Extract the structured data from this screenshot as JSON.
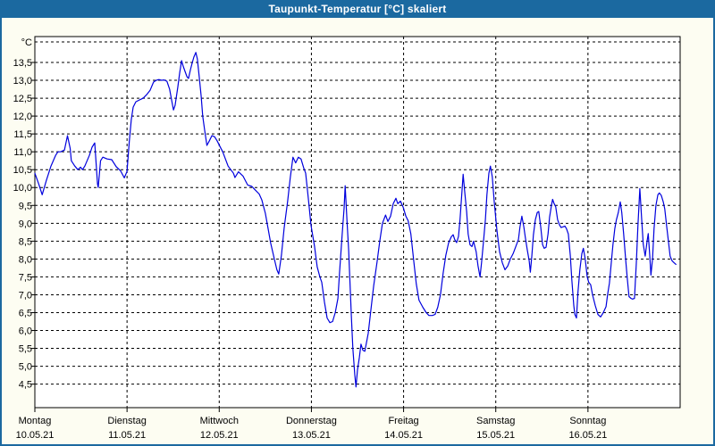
{
  "window": {
    "title": "Taupunkt-Temperatur [°C] skaliert"
  },
  "colors": {
    "titlebar_bg": "#1b69a0",
    "titlebar_text": "#ffffff",
    "frame_border": "#1b69a0",
    "page_bg": "#fdfdf2",
    "plot_bg": "#ffffff",
    "grid": "#000000",
    "axis": "#000000",
    "label_text": "#000000",
    "line": "#0000dd"
  },
  "chart_data": {
    "type": "line",
    "title": "Taupunkt-Temperatur [°C] skaliert",
    "unit_label": "°C",
    "ylabel": "",
    "xlabel": "",
    "ylim": [
      4.5,
      13.5
    ],
    "y_tick_step": 0.5,
    "y_ticks": [
      13.5,
      13.0,
      12.5,
      12.0,
      11.5,
      11.0,
      10.5,
      10.0,
      9.5,
      9.0,
      8.5,
      8.0,
      7.5,
      7.0,
      6.5,
      6.0,
      5.5,
      5.0,
      4.5
    ],
    "grid": "dashed",
    "legend": "none",
    "x_days": [
      {
        "label": "Montag",
        "date": "10.05.21"
      },
      {
        "label": "Dienstag",
        "date": "11.05.21"
      },
      {
        "label": "Mittwoch",
        "date": "12.05.21"
      },
      {
        "label": "Donnerstag",
        "date": "13.05.21"
      },
      {
        "label": "Freitag",
        "date": "14.05.21"
      },
      {
        "label": "Samstag",
        "date": "15.05.21"
      },
      {
        "label": "Sonntag",
        "date": "16.05.21"
      }
    ],
    "x_hours_total": 168,
    "series": [
      {
        "name": "Taupunkt",
        "color": "#0000dd",
        "points": [
          [
            0,
            10.4
          ],
          [
            1,
            10.1
          ],
          [
            1.9,
            9.8
          ],
          [
            3,
            10.2
          ],
          [
            4.2,
            10.6
          ],
          [
            5.4,
            10.9
          ],
          [
            6,
            11
          ],
          [
            6.7,
            11
          ],
          [
            7.7,
            11.05
          ],
          [
            8.5,
            11.45
          ],
          [
            9.2,
            11.1
          ],
          [
            9.5,
            10.75
          ],
          [
            10.4,
            10.6
          ],
          [
            11.2,
            10.5
          ],
          [
            11.9,
            10.57
          ],
          [
            12.4,
            10.5
          ],
          [
            13,
            10.6
          ],
          [
            14.2,
            10.9
          ],
          [
            14.9,
            11.13
          ],
          [
            15.6,
            11.25
          ],
          [
            16.3,
            10.1
          ],
          [
            16.5,
            10
          ],
          [
            17.1,
            10.75
          ],
          [
            17.7,
            10.85
          ],
          [
            18.8,
            10.8
          ],
          [
            20,
            10.78
          ],
          [
            21.2,
            10.58
          ],
          [
            22.3,
            10.47
          ],
          [
            23.3,
            10.27
          ],
          [
            24,
            10.45
          ],
          [
            24.6,
            11.3
          ],
          [
            25.1,
            11.9
          ],
          [
            25.6,
            12.25
          ],
          [
            26.3,
            12.4
          ],
          [
            27.2,
            12.45
          ],
          [
            28.2,
            12.5
          ],
          [
            29.1,
            12.6
          ],
          [
            30,
            12.72
          ],
          [
            30.9,
            12.95
          ],
          [
            31.6,
            13
          ],
          [
            32.3,
            13.02
          ],
          [
            33,
            13
          ],
          [
            33.7,
            13.01
          ],
          [
            34.4,
            12.97
          ],
          [
            35.1,
            12.75
          ],
          [
            35.6,
            12.45
          ],
          [
            36.1,
            12.17
          ],
          [
            36.5,
            12.3
          ],
          [
            37.2,
            12.8
          ],
          [
            37.7,
            13.2
          ],
          [
            38.2,
            13.55
          ],
          [
            38.6,
            13.4
          ],
          [
            39.1,
            13.25
          ],
          [
            39.6,
            13.1
          ],
          [
            40,
            13.05
          ],
          [
            40.5,
            13.3
          ],
          [
            41,
            13.5
          ],
          [
            41.4,
            13.65
          ],
          [
            41.9,
            13.78
          ],
          [
            42.3,
            13.6
          ],
          [
            42.8,
            13.1
          ],
          [
            43.3,
            12.55
          ],
          [
            43.7,
            12
          ],
          [
            44.2,
            11.6
          ],
          [
            44.8,
            11.18
          ],
          [
            45.4,
            11.3
          ],
          [
            46.1,
            11.45
          ],
          [
            46.8,
            11.42
          ],
          [
            47.5,
            11.3
          ],
          [
            48.2,
            11.15
          ],
          [
            48.9,
            11
          ],
          [
            49.6,
            10.8
          ],
          [
            50.3,
            10.6
          ],
          [
            51,
            10.5
          ],
          [
            51.7,
            10.4
          ],
          [
            52.1,
            10.28
          ],
          [
            53,
            10.44
          ],
          [
            54.2,
            10.32
          ],
          [
            55.4,
            10.07
          ],
          [
            56.5,
            10.03
          ],
          [
            57.2,
            9.95
          ],
          [
            58.4,
            9.82
          ],
          [
            59.1,
            9.65
          ],
          [
            60,
            9.28
          ],
          [
            60.7,
            8.86
          ],
          [
            61.4,
            8.44
          ],
          [
            62.3,
            8.03
          ],
          [
            63,
            7.7
          ],
          [
            63.5,
            7.58
          ],
          [
            64.2,
            8.11
          ],
          [
            64.9,
            8.86
          ],
          [
            65.8,
            9.61
          ],
          [
            66.5,
            10.28
          ],
          [
            67.2,
            10.85
          ],
          [
            67.9,
            10.69
          ],
          [
            68.6,
            10.85
          ],
          [
            69.3,
            10.8
          ],
          [
            70,
            10.55
          ],
          [
            70.5,
            10.4
          ],
          [
            71.2,
            9.69
          ],
          [
            71.9,
            8.94
          ],
          [
            72.8,
            8.36
          ],
          [
            73.5,
            7.78
          ],
          [
            74.2,
            7.5
          ],
          [
            74.7,
            7.35
          ],
          [
            75.4,
            6.8
          ],
          [
            76.1,
            6.35
          ],
          [
            76.8,
            6.22
          ],
          [
            77.5,
            6.25
          ],
          [
            78.2,
            6.5
          ],
          [
            78.9,
            6.9
          ],
          [
            79.3,
            7.58
          ],
          [
            80,
            8.67
          ],
          [
            80.5,
            9.42
          ],
          [
            80.8,
            10.05
          ],
          [
            81.3,
            9
          ],
          [
            81.7,
            8.25
          ],
          [
            82.4,
            6.42
          ],
          [
            82.8,
            5.5
          ],
          [
            83.3,
            4.75
          ],
          [
            83.6,
            4.42
          ],
          [
            84,
            4.9
          ],
          [
            84.5,
            5.25
          ],
          [
            84.9,
            5.62
          ],
          [
            85.4,
            5.45
          ],
          [
            85.9,
            5.42
          ],
          [
            86.8,
            5.92
          ],
          [
            87.5,
            6.58
          ],
          [
            88.2,
            7.25
          ],
          [
            89.1,
            7.92
          ],
          [
            89.8,
            8.5
          ],
          [
            90.5,
            9
          ],
          [
            91.3,
            9.23
          ],
          [
            91.9,
            9.05
          ],
          [
            92.6,
            9.2
          ],
          [
            93.3,
            9.55
          ],
          [
            94,
            9.7
          ],
          [
            94.5,
            9.55
          ],
          [
            95.2,
            9.62
          ],
          [
            95.9,
            9.45
          ],
          [
            96.6,
            9.2
          ],
          [
            97.2,
            9.07
          ],
          [
            97.9,
            8.7
          ],
          [
            98.6,
            8
          ],
          [
            99.3,
            7.3
          ],
          [
            100,
            6.85
          ],
          [
            101,
            6.65
          ],
          [
            101.9,
            6.5
          ],
          [
            102.6,
            6.42
          ],
          [
            103.5,
            6.42
          ],
          [
            104.2,
            6.45
          ],
          [
            104.9,
            6.65
          ],
          [
            105.6,
            7
          ],
          [
            106.3,
            7.6
          ],
          [
            107,
            8.1
          ],
          [
            107.7,
            8.45
          ],
          [
            108.4,
            8.62
          ],
          [
            108.9,
            8.68
          ],
          [
            109.3,
            8.55
          ],
          [
            109.8,
            8.46
          ],
          [
            110.3,
            8.63
          ],
          [
            110.7,
            9.1
          ],
          [
            111.2,
            9.9
          ],
          [
            111.5,
            10.37
          ],
          [
            111.9,
            9.9
          ],
          [
            112.4,
            9.33
          ],
          [
            112.8,
            8.7
          ],
          [
            113.3,
            8.4
          ],
          [
            113.8,
            8.35
          ],
          [
            114.2,
            8.5
          ],
          [
            114.9,
            8.2
          ],
          [
            115.4,
            7.8
          ],
          [
            115.9,
            7.5
          ],
          [
            116.3,
            7.9
          ],
          [
            116.8,
            8.5
          ],
          [
            117.3,
            9.1
          ],
          [
            117.7,
            9.8
          ],
          [
            118.2,
            10.4
          ],
          [
            118.6,
            10.6
          ],
          [
            119.1,
            10.3
          ],
          [
            119.6,
            9.6
          ],
          [
            120.3,
            8.8
          ],
          [
            121,
            8.2
          ],
          [
            121.7,
            7.9
          ],
          [
            122.4,
            7.7
          ],
          [
            123.1,
            7.8
          ],
          [
            123.8,
            8
          ],
          [
            124.5,
            8.15
          ],
          [
            125.2,
            8.35
          ],
          [
            125.9,
            8.55
          ],
          [
            126.3,
            8.9
          ],
          [
            126.8,
            9.2
          ],
          [
            127.3,
            8.9
          ],
          [
            127.7,
            8.6
          ],
          [
            128.2,
            8.25
          ],
          [
            128.7,
            7.95
          ],
          [
            129,
            7.63
          ],
          [
            129.4,
            8.1
          ],
          [
            129.8,
            8.67
          ],
          [
            130.3,
            9.1
          ],
          [
            130.8,
            9.3
          ],
          [
            131.2,
            9.33
          ],
          [
            131.7,
            8.9
          ],
          [
            132.2,
            8.4
          ],
          [
            132.6,
            8.3
          ],
          [
            133.1,
            8.33
          ],
          [
            133.6,
            8.7
          ],
          [
            134,
            9.17
          ],
          [
            134.5,
            9.5
          ],
          [
            134.8,
            9.67
          ],
          [
            135.2,
            9.55
          ],
          [
            135.6,
            9.46
          ],
          [
            136.1,
            9.1
          ],
          [
            136.6,
            8.95
          ],
          [
            137,
            8.88
          ],
          [
            137.5,
            8.9
          ],
          [
            138,
            8.92
          ],
          [
            138.4,
            8.85
          ],
          [
            138.9,
            8.7
          ],
          [
            139.4,
            8.1
          ],
          [
            139.8,
            7.42
          ],
          [
            140.3,
            6.7
          ],
          [
            140.6,
            6.45
          ],
          [
            141,
            6.35
          ],
          [
            141.4,
            7.08
          ],
          [
            141.9,
            7.7
          ],
          [
            142.4,
            8.15
          ],
          [
            142.8,
            8.3
          ],
          [
            143.3,
            8
          ],
          [
            143.8,
            7.5
          ],
          [
            144.2,
            7.35
          ],
          [
            144.7,
            7.28
          ],
          [
            145.2,
            7
          ],
          [
            145.9,
            6.7
          ],
          [
            146.6,
            6.45
          ],
          [
            147.3,
            6.38
          ],
          [
            148,
            6.5
          ],
          [
            148.7,
            6.67
          ],
          [
            149.1,
            7
          ],
          [
            149.6,
            7.33
          ],
          [
            150,
            7.8
          ],
          [
            150.5,
            8.4
          ],
          [
            151,
            8.85
          ],
          [
            151.4,
            9.1
          ],
          [
            151.9,
            9.3
          ],
          [
            152.4,
            9.6
          ],
          [
            152.8,
            9.3
          ],
          [
            153.3,
            8.7
          ],
          [
            153.8,
            8
          ],
          [
            154.2,
            7.5
          ],
          [
            154.7,
            6.95
          ],
          [
            155.2,
            6.9
          ],
          [
            155.6,
            6.88
          ],
          [
            156.1,
            6.9
          ],
          [
            156.6,
            7.9
          ],
          [
            157,
            8.9
          ],
          [
            157.5,
            9.97
          ],
          [
            158,
            9.1
          ],
          [
            158.4,
            8.42
          ],
          [
            158.9,
            8.08
          ],
          [
            159.4,
            8.5
          ],
          [
            159.7,
            8.71
          ],
          [
            160.1,
            8.1
          ],
          [
            160.4,
            7.55
          ],
          [
            160.8,
            8
          ],
          [
            161.2,
            8.85
          ],
          [
            161.7,
            9.5
          ],
          [
            162.2,
            9.8
          ],
          [
            162.6,
            9.85
          ],
          [
            163.1,
            9.78
          ],
          [
            163.6,
            9.6
          ],
          [
            164,
            9.4
          ],
          [
            164.5,
            8.9
          ],
          [
            165,
            8.45
          ],
          [
            165.4,
            8.08
          ],
          [
            165.9,
            7.95
          ],
          [
            166.4,
            7.9
          ],
          [
            166.9,
            7.85
          ]
        ]
      }
    ]
  }
}
